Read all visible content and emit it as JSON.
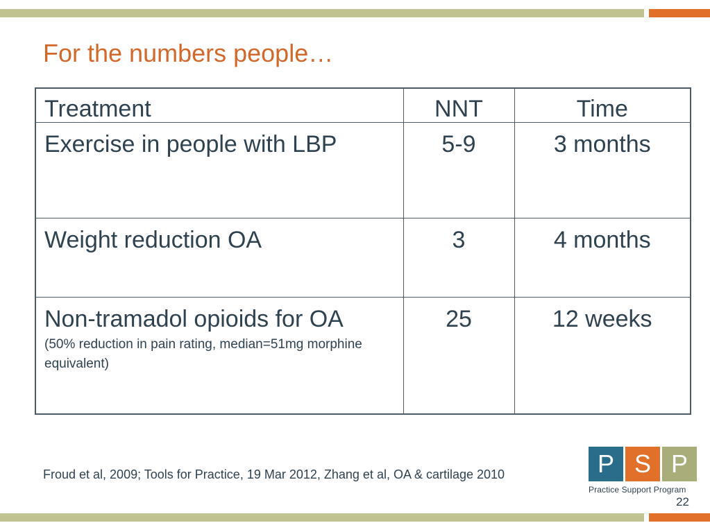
{
  "slide": {
    "title": "For the numbers people…",
    "page_number": "22",
    "citation": "Froud et al, 2009;  Tools for Practice, 19 Mar 2012, Zhang et al, OA & cartilage 2010"
  },
  "table": {
    "headers": [
      "Treatment",
      "NNT",
      "Time"
    ],
    "rows": [
      {
        "treatment": "Exercise in people with LBP",
        "note": "",
        "nnt": "5-9",
        "time": "3 months"
      },
      {
        "treatment": "Weight reduction OA",
        "note": "",
        "nnt": "3",
        "time": "4 months"
      },
      {
        "treatment": "Non-tramadol opioids for OA",
        "note": "(50% reduction in pain rating, median=51mg morphine equivalent)",
        "nnt": "25",
        "time": "12 weeks"
      }
    ]
  },
  "logo": {
    "letters": [
      "P",
      "S",
      "P"
    ],
    "caption": "Practice Support Program"
  },
  "colors": {
    "accent_orange": "#e0702a",
    "olive": "#c0c291",
    "text_dark": "#2f4250",
    "logo_blue": "#2a6d8a"
  }
}
